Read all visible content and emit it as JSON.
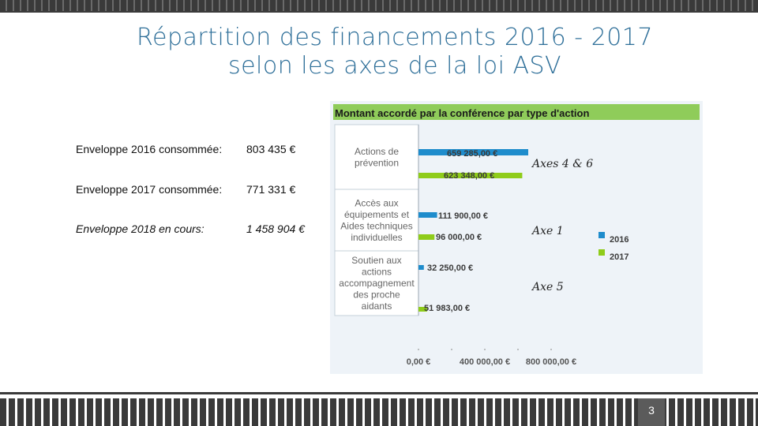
{
  "slide": {
    "title_line1": "Répartition des financements 2016 - 2017",
    "title_line2": "selon les axes de la loi ASV",
    "page_number": "3",
    "envelopes": [
      {
        "label": "Enveloppe 2016 consommée:",
        "value": "803 435 €"
      },
      {
        "label": "Enveloppe 2017 consommée:",
        "value": "771 331 €"
      },
      {
        "label": "Enveloppe 2018 en cours:",
        "value": "1 458 904 €"
      }
    ],
    "annotations": [
      "Axes 4 & 6",
      "Axe 1",
      "Axe 5"
    ]
  },
  "colors": {
    "accent_title": "#2e6f99",
    "series_2016": "#1e8ccc",
    "series_2017": "#8fcc1a",
    "header_green": "#8fcc5a"
  },
  "chart_data": {
    "type": "bar",
    "orientation": "horizontal",
    "title": "Montant accordé par la conférence par type d'action",
    "categories": [
      "Actions de prévention",
      "Accès aux équipements et Aides techniques individuelles",
      "Soutien aux actions accompagnement des proche aidants"
    ],
    "category_lines": [
      [
        "Actions de",
        "prévention"
      ],
      [
        "Accès aux",
        "équipements et",
        "Aides techniques",
        "individuelles"
      ],
      [
        "Soutien aux",
        "actions",
        "accompagnement",
        "des proche",
        "aidants"
      ]
    ],
    "series": [
      {
        "name": "2016",
        "values": [
          659285,
          111900,
          32250
        ],
        "labels": [
          "659 285,00 €",
          "111 900,00 €",
          "32 250,00 €"
        ]
      },
      {
        "name": "2017",
        "values": [
          623348,
          96000,
          51983
        ],
        "labels": [
          "623 348,00 €",
          "96 000,00 €",
          "51 983,00 €"
        ]
      }
    ],
    "x_ticks": [
      {
        "value": 0,
        "label": "0,00 €"
      },
      {
        "value": 400000,
        "label": "400 000,00 €"
      },
      {
        "value": 800000,
        "label": "800 000,00 €"
      }
    ],
    "xlim": [
      0,
      800000
    ],
    "legend": [
      "2016",
      "2017"
    ],
    "legend_position": "right",
    "grid": false
  }
}
